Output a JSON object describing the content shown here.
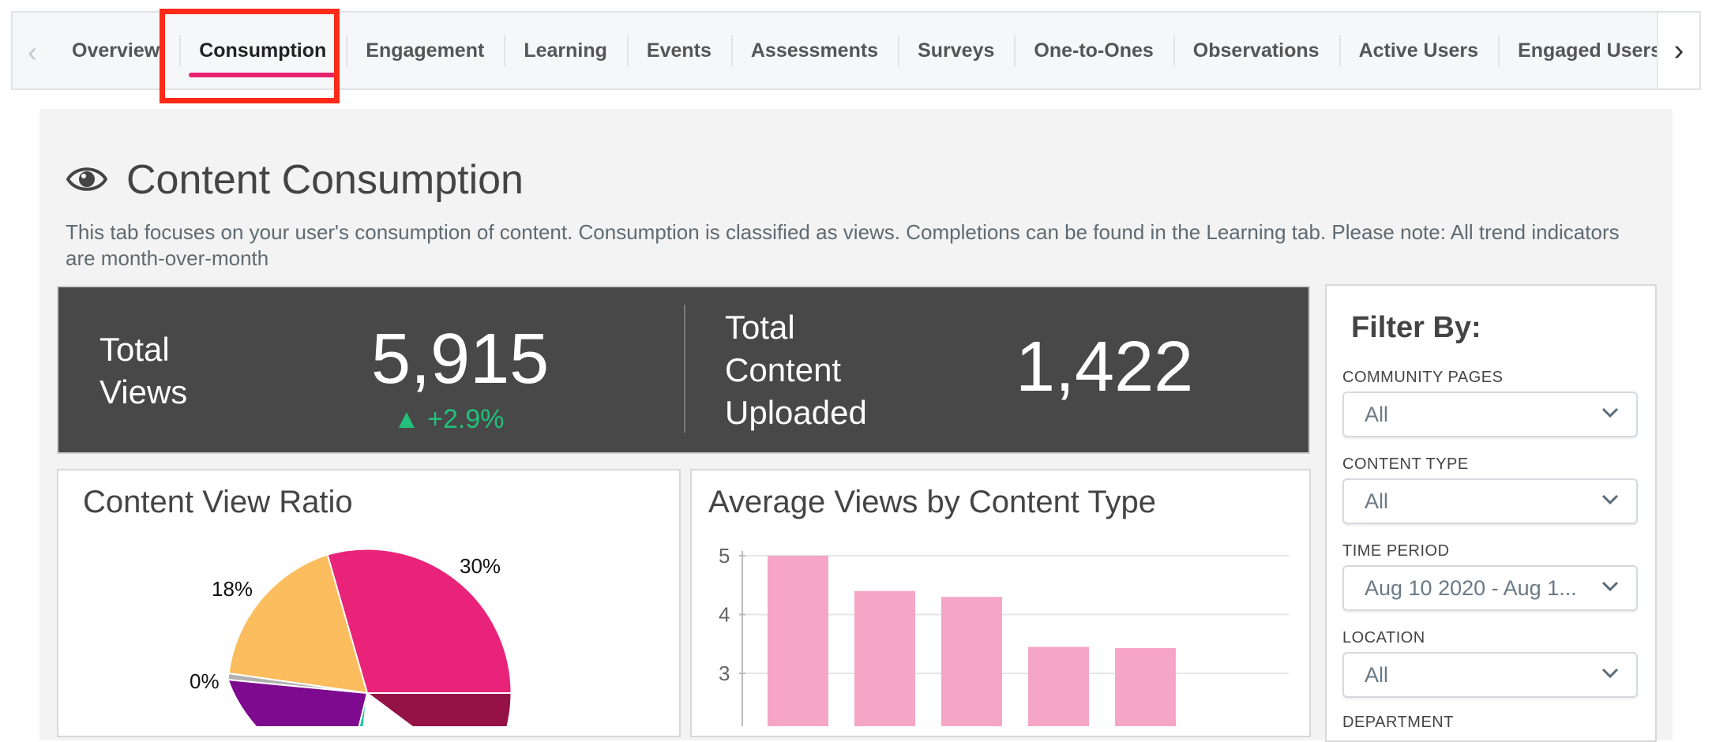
{
  "tabs": [
    {
      "label": "Overview"
    },
    {
      "label": "Consumption"
    },
    {
      "label": "Engagement"
    },
    {
      "label": "Learning"
    },
    {
      "label": "Events"
    },
    {
      "label": "Assessments"
    },
    {
      "label": "Surveys"
    },
    {
      "label": "One-to-Ones"
    },
    {
      "label": "Observations"
    },
    {
      "label": "Active Users"
    },
    {
      "label": "Engaged Users Overview"
    }
  ],
  "active_tab": "Consumption",
  "page": {
    "title": "Content Consumption",
    "description": "This tab focuses on your user's consumption of content. Consumption is classified as views. Completions can be found in the Learning tab. Please note: All trend indicators are month-over-month"
  },
  "stats": {
    "total_views_label_1": "Total",
    "total_views_label_2": "Views",
    "total_views_value": "5,915",
    "total_views_trend": "+2.9%",
    "uploaded_label_1": "Total",
    "uploaded_label_2": "Content",
    "uploaded_label_3": "Uploaded",
    "uploaded_value": "1,422"
  },
  "filter": {
    "title": "Filter By:",
    "community_pages": {
      "label": "COMMUNITY PAGES",
      "value": "All"
    },
    "content_type": {
      "label": "CONTENT TYPE",
      "value": "All"
    },
    "time_period": {
      "label": "TIME PERIOD",
      "value": "Aug 10 2020 - Aug 1..."
    },
    "location": {
      "label": "LOCATION",
      "value": "All"
    },
    "department": {
      "label": "DEPARTMENT"
    }
  },
  "colors": {
    "accent": "#e8216f",
    "trend_up": "#22c07a",
    "bar": "#f5a6c6",
    "pie_pink": "#e9237a",
    "pie_orange": "#fbbd5d",
    "pie_purple": "#7e0a8f",
    "pie_maroon": "#951247",
    "pie_teal": "#1cc39a"
  },
  "chart_data": [
    {
      "type": "pie",
      "title": "Content View Ratio",
      "slice_labels": [
        "30%",
        "18%",
        "0%"
      ],
      "values": [
        30,
        18,
        0
      ]
    },
    {
      "type": "bar",
      "title": "Average Views by Content Type",
      "values": [
        5.0,
        4.4,
        4.3,
        3.45,
        3.43
      ],
      "ylim": [
        2,
        5
      ],
      "yticks": [
        "5",
        "4",
        "3"
      ],
      "grid": true
    }
  ]
}
